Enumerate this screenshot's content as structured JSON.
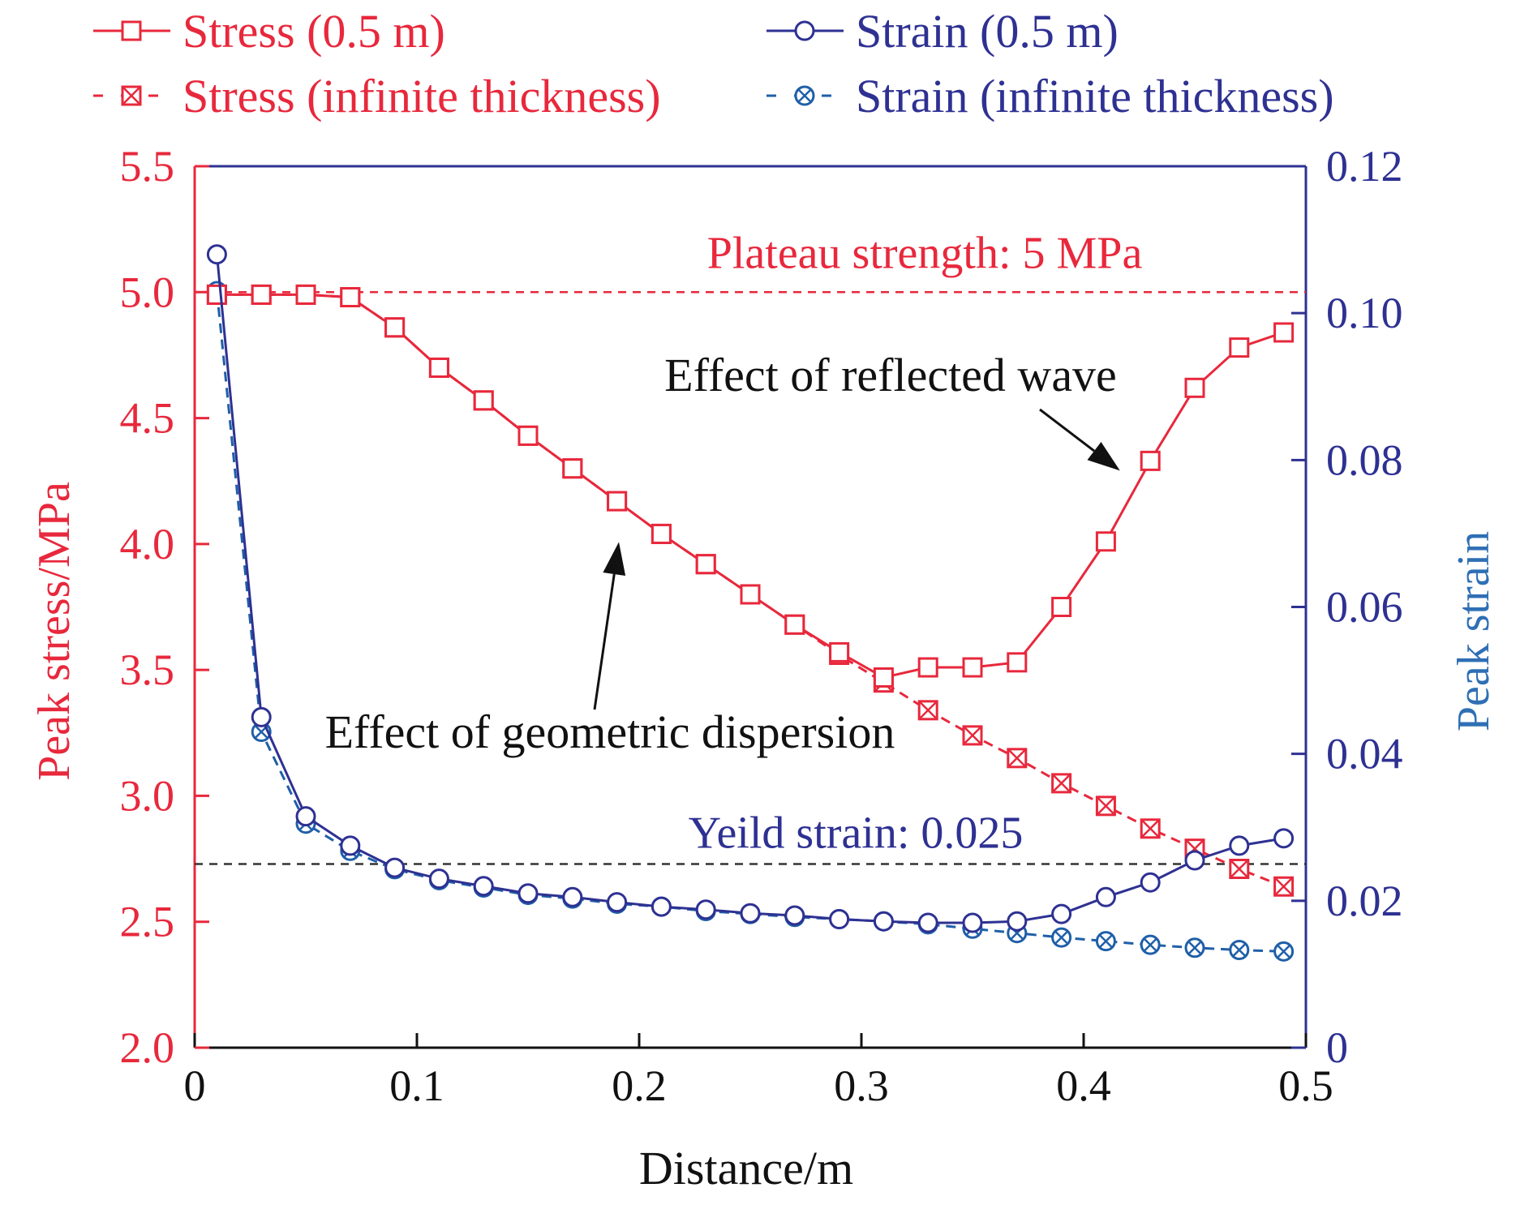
{
  "chart_data": {
    "type": "line",
    "xlabel": "Distance/m",
    "ylabel_left": "Peak stress/MPa",
    "ylabel_right": "Peak strain",
    "xlim": [
      0,
      0.5
    ],
    "ylim_left": [
      2.0,
      5.5
    ],
    "ylim_right": [
      0,
      0.12
    ],
    "x_ticks": [
      0,
      0.1,
      0.2,
      0.3,
      0.4,
      0.5
    ],
    "x_tick_labels": [
      "0",
      "0.1",
      "0.2",
      "0.3",
      "0.4",
      "0.5"
    ],
    "y_left_ticks": [
      2.0,
      2.5,
      3.0,
      3.5,
      4.0,
      4.5,
      5.0,
      5.5
    ],
    "y_left_tick_labels": [
      "2.0",
      "2.5",
      "3.0",
      "3.5",
      "4.0",
      "4.5",
      "5.0",
      "5.5"
    ],
    "y_right_ticks": [
      0,
      0.02,
      0.04,
      0.06,
      0.08,
      0.1,
      0.12
    ],
    "y_right_tick_labels": [
      "0",
      "0.02",
      "0.04",
      "0.06",
      "0.08",
      "0.10",
      "0.12"
    ],
    "grid": false,
    "legend_position": "top",
    "colors": {
      "stress": "#e8283c",
      "strain": "#2e3192",
      "strain_infinite": "#1f5fa8",
      "left_axis": "#e8283c",
      "right_axis": "#2e3192",
      "right_label": "#2f6fb5",
      "reference_line": "#333333",
      "text": "#111111"
    },
    "x": [
      0.01,
      0.03,
      0.05,
      0.07,
      0.09,
      0.11,
      0.13,
      0.15,
      0.17,
      0.19,
      0.21,
      0.23,
      0.25,
      0.27,
      0.29,
      0.31,
      0.33,
      0.35,
      0.37,
      0.39,
      0.41,
      0.43,
      0.45,
      0.47,
      0.49
    ],
    "series": [
      {
        "name": "Stress (0.5 m)",
        "axis": "left",
        "style": "solid",
        "marker": "square",
        "values": [
          4.99,
          4.99,
          4.99,
          4.98,
          4.86,
          4.7,
          4.57,
          4.43,
          4.3,
          4.17,
          4.04,
          3.92,
          3.8,
          3.68,
          3.57,
          3.47,
          3.51,
          3.51,
          3.53,
          3.75,
          4.01,
          4.33,
          4.62,
          4.78,
          4.84
        ]
      },
      {
        "name": "Stress (infinite thickness)",
        "axis": "left",
        "style": "dashed",
        "marker": "square-x",
        "values": [
          4.99,
          4.99,
          4.99,
          4.98,
          4.86,
          4.7,
          4.57,
          4.43,
          4.3,
          4.17,
          4.04,
          3.92,
          3.8,
          3.68,
          3.56,
          3.45,
          3.34,
          3.24,
          3.15,
          3.05,
          2.96,
          2.87,
          2.79,
          2.71,
          2.64
        ]
      },
      {
        "name": "Strain (0.5 m)",
        "axis": "right",
        "style": "solid",
        "marker": "circle",
        "values": [
          0.108,
          0.045,
          0.0315,
          0.0275,
          0.0245,
          0.023,
          0.022,
          0.021,
          0.0205,
          0.0198,
          0.0192,
          0.0188,
          0.0183,
          0.018,
          0.0175,
          0.0172,
          0.017,
          0.017,
          0.0172,
          0.0182,
          0.0205,
          0.0225,
          0.0255,
          0.0275,
          0.0285
        ]
      },
      {
        "name": "Strain (infinite thickness)",
        "axis": "right",
        "style": "dashed",
        "marker": "circle-x",
        "values": [
          0.103,
          0.043,
          0.0305,
          0.0268,
          0.0243,
          0.0228,
          0.0218,
          0.0208,
          0.0203,
          0.0196,
          0.0192,
          0.0186,
          0.0182,
          0.0178,
          0.0175,
          0.0172,
          0.0168,
          0.0162,
          0.0156,
          0.015,
          0.0145,
          0.014,
          0.0136,
          0.0133,
          0.0131
        ]
      }
    ],
    "reference_lines": [
      {
        "name": "plateau",
        "axis": "left",
        "value": 5.0,
        "label": "Plateau strength: 5 MPa",
        "color": "#e8283c"
      },
      {
        "name": "yield",
        "axis": "right",
        "value": 0.025,
        "label": "Yeild strain: 0.025",
        "color": "#333333",
        "label_color": "#2e3192"
      }
    ],
    "annotations": [
      {
        "name": "reflected-wave",
        "text": "Effect of reflected wave",
        "arrow_target": [
          0.42,
          4.33
        ]
      },
      {
        "name": "geometric-dispersion",
        "text": "Effect of geometric dispersion",
        "arrow_target": [
          0.2,
          4.04
        ]
      }
    ]
  }
}
